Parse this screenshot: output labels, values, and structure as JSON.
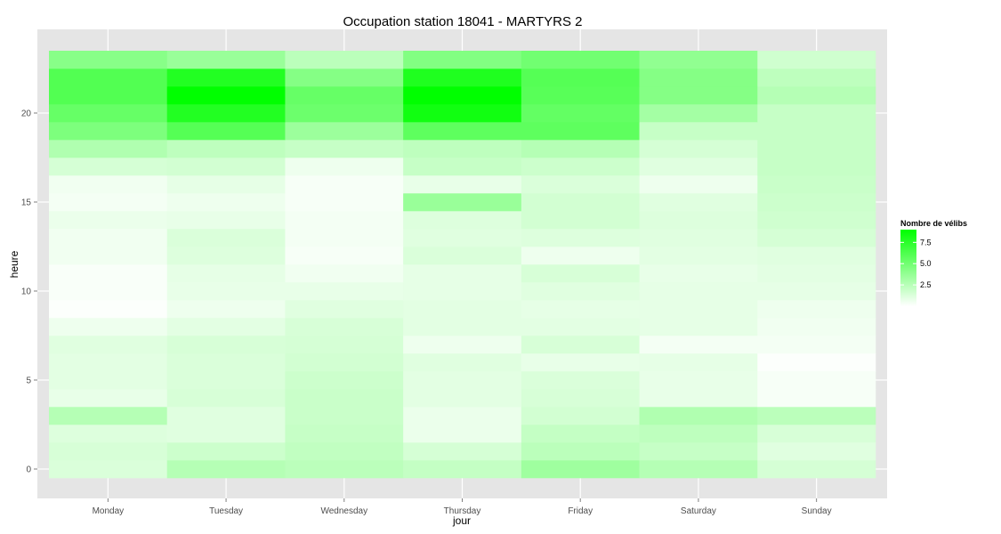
{
  "chart_data": {
    "type": "heatmap",
    "title": "Occupation station 18041 - MARTYRS 2",
    "xlabel": "jour",
    "ylabel": "heure",
    "x": [
      "Monday",
      "Tuesday",
      "Wednesday",
      "Thursday",
      "Friday",
      "Saturday",
      "Sunday"
    ],
    "y": [
      0,
      1,
      2,
      3,
      4,
      5,
      6,
      7,
      8,
      9,
      10,
      11,
      12,
      13,
      14,
      15,
      16,
      17,
      18,
      19,
      20,
      21,
      22,
      23
    ],
    "y_ticks": [
      0,
      5,
      10,
      15,
      20
    ],
    "y_tick_labels": [
      "0",
      "5",
      "10",
      "15",
      "20"
    ],
    "ylim": [
      -0.5,
      23.5
    ],
    "grid": true,
    "legend": {
      "title": "Nombre de vélibs",
      "position": "right",
      "ticks": [
        2.5,
        5.0,
        7.5
      ],
      "tick_labels": [
        "2.5",
        "5.0",
        "7.5"
      ],
      "range": [
        0,
        9
      ],
      "color_low": "#ffffff",
      "color_high": "#00ff00"
    },
    "values": [
      [
        1.3,
        2.6,
        2.4,
        2.1,
        3.4,
        2.6,
        1.5
      ],
      [
        1.4,
        1.8,
        2.2,
        1.5,
        2.4,
        2.0,
        1.1
      ],
      [
        1.2,
        1.1,
        2.0,
        0.7,
        2.1,
        2.3,
        1.4
      ],
      [
        2.6,
        1.1,
        1.9,
        0.7,
        1.6,
        2.8,
        2.4
      ],
      [
        0.8,
        1.4,
        1.9,
        1.0,
        1.4,
        0.8,
        0.3
      ],
      [
        1.0,
        1.3,
        1.8,
        1.0,
        1.3,
        0.8,
        0.3
      ],
      [
        1.0,
        1.3,
        1.6,
        1.1,
        0.8,
        0.9,
        0.1
      ],
      [
        1.1,
        1.4,
        1.5,
        0.6,
        1.4,
        0.4,
        0.4
      ],
      [
        0.6,
        1.0,
        1.4,
        1.0,
        1.0,
        0.9,
        0.5
      ],
      [
        0.1,
        0.6,
        1.1,
        1.0,
        0.9,
        0.9,
        0.6
      ],
      [
        0.2,
        0.8,
        0.8,
        0.9,
        1.1,
        0.9,
        0.9
      ],
      [
        0.2,
        0.9,
        0.5,
        0.9,
        1.4,
        0.8,
        1.0
      ],
      [
        0.5,
        1.2,
        0.3,
        1.3,
        0.6,
        1.0,
        1.1
      ],
      [
        0.5,
        1.3,
        0.4,
        1.1,
        1.2,
        1.1,
        1.5
      ],
      [
        0.7,
        0.8,
        0.4,
        1.2,
        1.6,
        1.2,
        1.7
      ],
      [
        0.4,
        0.6,
        0.3,
        3.6,
        1.6,
        1.1,
        1.8
      ],
      [
        0.5,
        0.9,
        0.3,
        0.8,
        1.3,
        0.6,
        1.9
      ],
      [
        1.5,
        1.6,
        0.6,
        2.0,
        1.8,
        1.1,
        2.0
      ],
      [
        2.8,
        2.3,
        2.0,
        2.3,
        2.6,
        1.5,
        2.0
      ],
      [
        4.6,
        6.0,
        3.5,
        5.7,
        5.7,
        2.0,
        2.0
      ],
      [
        5.4,
        7.8,
        5.2,
        8.4,
        5.5,
        3.2,
        2.0
      ],
      [
        6.1,
        9.0,
        5.4,
        9.0,
        5.9,
        4.3,
        2.6
      ],
      [
        6.1,
        7.8,
        4.3,
        7.9,
        6.0,
        4.3,
        2.3
      ],
      [
        4.2,
        3.6,
        2.4,
        4.4,
        5.0,
        3.9,
        1.7
      ]
    ]
  }
}
